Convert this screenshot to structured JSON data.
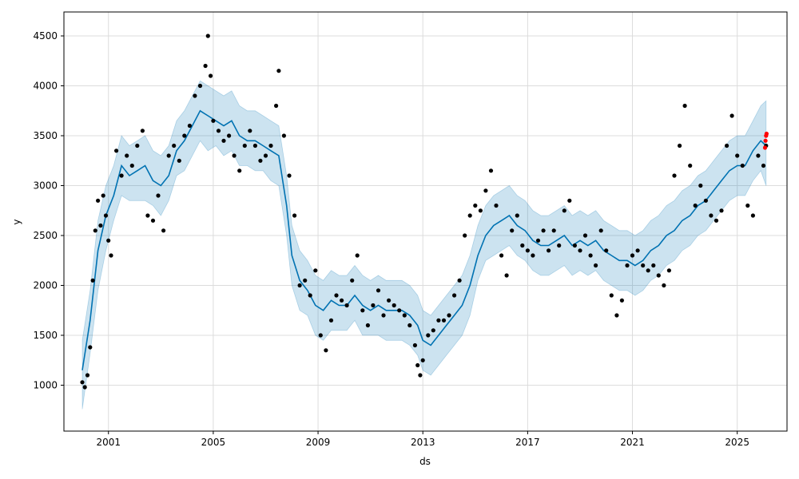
{
  "chart_data": {
    "type": "line",
    "title": "",
    "xlabel": "ds",
    "ylabel": "y",
    "xlim": [
      1999.3,
      2026.9
    ],
    "ylim": [
      540,
      4740
    ],
    "x_ticks": [
      2001,
      2005,
      2009,
      2013,
      2017,
      2021,
      2025
    ],
    "y_ticks": [
      1000,
      1500,
      2000,
      2500,
      3000,
      3500,
      4000,
      4500
    ],
    "grid": true,
    "legend": "none",
    "colors": {
      "actual": "#000000",
      "forecast": "#0072B2",
      "interval": "#0072B2",
      "recent": "#ff0000"
    },
    "series": [
      {
        "name": "",
        "kind": "scatter",
        "x": [
          2000.0,
          2000.1,
          2000.2,
          2000.3,
          2000.4,
          2000.5,
          2000.6,
          2000.7,
          2000.8,
          2000.9,
          2001.0,
          2001.1,
          2001.3,
          2001.5,
          2001.7,
          2001.9,
          2002.1,
          2002.3,
          2002.5,
          2002.7,
          2002.9,
          2003.1,
          2003.3,
          2003.5,
          2003.7,
          2003.9,
          2004.1,
          2004.3,
          2004.5,
          2004.7,
          2004.8,
          2004.9,
          2005.0,
          2005.2,
          2005.4,
          2005.6,
          2005.8,
          2006.0,
          2006.2,
          2006.4,
          2006.6,
          2006.8,
          2007.0,
          2007.2,
          2007.4,
          2007.5,
          2007.7,
          2007.9,
          2008.1,
          2008.3,
          2008.5,
          2008.7,
          2008.9,
          2009.1,
          2009.3,
          2009.5,
          2009.7,
          2009.9,
          2010.1,
          2010.3,
          2010.5,
          2010.7,
          2010.9,
          2011.1,
          2011.3,
          2011.5,
          2011.7,
          2011.9,
          2012.1,
          2012.3,
          2012.5,
          2012.7,
          2012.8,
          2012.9,
          2013.0,
          2013.2,
          2013.4,
          2013.6,
          2013.8,
          2014.0,
          2014.2,
          2014.4,
          2014.6,
          2014.8,
          2015.0,
          2015.2,
          2015.4,
          2015.6,
          2015.8,
          2016.0,
          2016.2,
          2016.4,
          2016.6,
          2016.8,
          2017.0,
          2017.2,
          2017.4,
          2017.6,
          2017.8,
          2018.0,
          2018.2,
          2018.4,
          2018.6,
          2018.8,
          2019.0,
          2019.2,
          2019.4,
          2019.6,
          2019.8,
          2020.0,
          2020.2,
          2020.4,
          2020.6,
          2020.8,
          2021.0,
          2021.2,
          2021.4,
          2021.6,
          2021.8,
          2022.0,
          2022.2,
          2022.4,
          2022.6,
          2022.8,
          2023.0,
          2023.2,
          2023.4,
          2023.6,
          2023.8,
          2024.0,
          2024.2,
          2024.4,
          2024.6,
          2024.8,
          2025.0,
          2025.2,
          2025.4,
          2025.6,
          2025.8,
          2026.0,
          2026.1
        ],
        "y": [
          1030,
          980,
          1100,
          1380,
          2050,
          2550,
          2850,
          2600,
          2900,
          2700,
          2450,
          2300,
          3350,
          3100,
          3300,
          3200,
          3400,
          3550,
          2700,
          2650,
          2900,
          2550,
          3300,
          3400,
          3250,
          3500,
          3600,
          3900,
          4000,
          4200,
          4500,
          4100,
          3650,
          3550,
          3450,
          3500,
          3300,
          3150,
          3400,
          3550,
          3400,
          3250,
          3300,
          3400,
          3800,
          4150,
          3500,
          3100,
          2700,
          2000,
          2050,
          1900,
          2150,
          1500,
          1350,
          1650,
          1900,
          1850,
          1800,
          2050,
          2300,
          1750,
          1600,
          1800,
          1950,
          1700,
          1850,
          1800,
          1750,
          1700,
          1600,
          1400,
          1200,
          1100,
          1250,
          1500,
          1550,
          1650,
          1650,
          1700,
          1900,
          2050,
          2500,
          2700,
          2800,
          2750,
          2950,
          3150,
          2800,
          2300,
          2100,
          2550,
          2700,
          2400,
          2350,
          2300,
          2450,
          2550,
          2350,
          2550,
          2400,
          2750,
          2850,
          2400,
          2350,
          2500,
          2300,
          2200,
          2550,
          2350,
          1900,
          1700,
          1850,
          2200,
          2300,
          2350,
          2200,
          2150,
          2200,
          2100,
          2000,
          2150,
          3100,
          3400,
          3800,
          3200,
          2800,
          3000,
          2850,
          2700,
          2650,
          2750,
          3400,
          3700,
          3300,
          3200,
          2800,
          2700,
          3300,
          3200,
          3400
        ]
      },
      {
        "name": "",
        "kind": "line",
        "x": [
          2000.0,
          2000.3,
          2000.6,
          2000.9,
          2001.2,
          2001.5,
          2001.8,
          2002.1,
          2002.4,
          2002.7,
          2003.0,
          2003.3,
          2003.6,
          2003.9,
          2004.2,
          2004.5,
          2004.8,
          2005.1,
          2005.4,
          2005.7,
          2006.0,
          2006.3,
          2006.6,
          2006.9,
          2007.2,
          2007.5,
          2007.8,
          2008.0,
          2008.3,
          2008.6,
          2008.9,
          2009.2,
          2009.5,
          2009.8,
          2010.1,
          2010.4,
          2010.7,
          2011.0,
          2011.3,
          2011.6,
          2011.9,
          2012.2,
          2012.5,
          2012.8,
          2013.0,
          2013.3,
          2013.6,
          2013.9,
          2014.2,
          2014.5,
          2014.8,
          2015.1,
          2015.4,
          2015.7,
          2016.0,
          2016.3,
          2016.6,
          2016.9,
          2017.2,
          2017.5,
          2017.8,
          2018.1,
          2018.4,
          2018.7,
          2019.0,
          2019.3,
          2019.6,
          2019.9,
          2020.2,
          2020.5,
          2020.8,
          2021.1,
          2021.4,
          2021.7,
          2022.0,
          2022.3,
          2022.6,
          2022.9,
          2023.2,
          2023.5,
          2023.8,
          2024.1,
          2024.4,
          2024.7,
          2025.0,
          2025.3,
          2025.6,
          2025.9,
          2026.1
        ],
        "y": [
          1150,
          1650,
          2350,
          2700,
          2900,
          3200,
          3100,
          3150,
          3200,
          3050,
          3000,
          3100,
          3350,
          3450,
          3600,
          3750,
          3700,
          3650,
          3600,
          3650,
          3500,
          3450,
          3450,
          3400,
          3350,
          3300,
          2800,
          2300,
          2050,
          1950,
          1800,
          1750,
          1850,
          1800,
          1800,
          1900,
          1800,
          1750,
          1800,
          1750,
          1750,
          1750,
          1700,
          1600,
          1450,
          1400,
          1500,
          1600,
          1700,
          1800,
          2000,
          2300,
          2500,
          2600,
          2650,
          2700,
          2600,
          2550,
          2450,
          2400,
          2400,
          2450,
          2500,
          2400,
          2450,
          2400,
          2450,
          2350,
          2300,
          2250,
          2250,
          2200,
          2250,
          2350,
          2400,
          2500,
          2550,
          2650,
          2700,
          2800,
          2850,
          2950,
          3050,
          3150,
          3200,
          3200,
          3350,
          3450,
          3400
        ]
      },
      {
        "name": "",
        "kind": "scatter",
        "x": [
          2026.06,
          2026.08,
          2026.1,
          2026.12
        ],
        "y": [
          3380,
          3450,
          3500,
          3520
        ]
      }
    ],
    "interval": {
      "lower": [
        760,
        1320,
        1950,
        2350,
        2650,
        2900,
        2850,
        2850,
        2850,
        2800,
        2700,
        2850,
        3100,
        3150,
        3300,
        3450,
        3350,
        3400,
        3300,
        3350,
        3200,
        3200,
        3150,
        3150,
        3050,
        3000,
        2500,
        2000,
        1750,
        1700,
        1500,
        1450,
        1550,
        1550,
        1550,
        1650,
        1500,
        1500,
        1500,
        1450,
        1450,
        1450,
        1400,
        1300,
        1150,
        1100,
        1200,
        1300,
        1400,
        1500,
        1700,
        2050,
        2250,
        2300,
        2350,
        2400,
        2300,
        2250,
        2150,
        2100,
        2100,
        2150,
        2200,
        2100,
        2150,
        2100,
        2150,
        2050,
        2000,
        1950,
        1950,
        1900,
        1950,
        2050,
        2100,
        2200,
        2250,
        2350,
        2400,
        2500,
        2550,
        2650,
        2750,
        2850,
        2900,
        2900,
        3050,
        3150,
        3000
      ],
      "upper": [
        1450,
        1950,
        2650,
        3000,
        3200,
        3500,
        3400,
        3450,
        3500,
        3350,
        3300,
        3400,
        3650,
        3750,
        3900,
        4050,
        4000,
        3950,
        3900,
        3950,
        3800,
        3750,
        3750,
        3700,
        3650,
        3600,
        3100,
        2600,
        2350,
        2250,
        2100,
        2050,
        2150,
        2100,
        2100,
        2200,
        2100,
        2050,
        2100,
        2050,
        2050,
        2050,
        2000,
        1900,
        1750,
        1700,
        1800,
        1900,
        2000,
        2100,
        2300,
        2600,
        2800,
        2900,
        2950,
        3000,
        2900,
        2850,
        2750,
        2700,
        2700,
        2750,
        2800,
        2700,
        2750,
        2700,
        2750,
        2650,
        2600,
        2550,
        2550,
        2500,
        2550,
        2650,
        2700,
        2800,
        2850,
        2950,
        3000,
        3100,
        3150,
        3250,
        3350,
        3450,
        3500,
        3500,
        3650,
        3800,
        3850
      ]
    }
  }
}
